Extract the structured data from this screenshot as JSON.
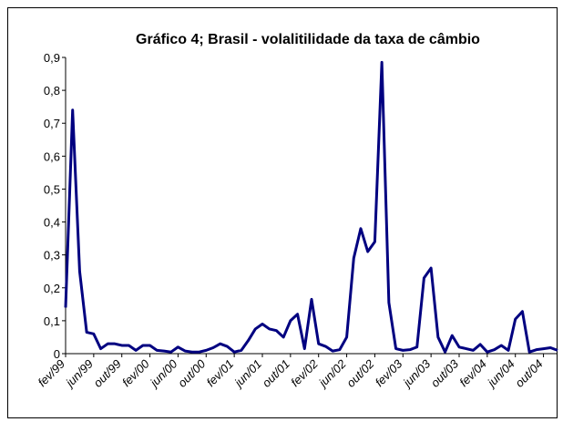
{
  "chart_data": {
    "type": "line",
    "title": "Gráfico 4; Brasil - volalitilidade da taxa de câmbio",
    "categories": [
      "fev/99",
      null,
      null,
      null,
      "jun/99",
      null,
      null,
      null,
      "out/99",
      null,
      null,
      null,
      "fev/00",
      null,
      null,
      null,
      "jun/00",
      null,
      null,
      null,
      "out/00",
      null,
      null,
      null,
      "fev/01",
      null,
      null,
      null,
      "jun/01",
      null,
      null,
      null,
      "out/01",
      null,
      null,
      null,
      "fev/02",
      null,
      null,
      null,
      "jun/02",
      null,
      null,
      null,
      "out/02",
      null,
      null,
      null,
      "fev/03",
      null,
      null,
      null,
      "jun/03",
      null,
      null,
      null,
      "out/03",
      null,
      null,
      null,
      "fev/04",
      null,
      null,
      null,
      "jun/04",
      null,
      null,
      null,
      "out/04",
      null,
      null
    ],
    "series": [
      {
        "color": "#000080",
        "values": [
          0.14,
          0.74,
          0.25,
          0.065,
          0.06,
          0.015,
          0.03,
          0.03,
          0.025,
          0.025,
          0.01,
          0.025,
          0.025,
          0.01,
          0.008,
          0.005,
          0.02,
          0.008,
          0.005,
          0.005,
          0.01,
          0.018,
          0.03,
          0.022,
          0.005,
          0.01,
          0.04,
          0.075,
          0.09,
          0.075,
          0.07,
          0.05,
          0.1,
          0.12,
          0.015,
          0.165,
          0.03,
          0.022,
          0.008,
          0.012,
          0.05,
          0.29,
          0.38,
          0.31,
          0.34,
          0.885,
          0.155,
          0.015,
          0.01,
          0.012,
          0.02,
          0.23,
          0.26,
          0.05,
          0.005,
          0.055,
          0.02,
          0.015,
          0.01,
          0.028,
          0.005,
          0.012,
          0.025,
          0.01,
          0.105,
          0.128,
          0.005,
          0.012,
          0.015,
          0.018,
          0.01
        ]
      }
    ],
    "ylim": [
      0,
      0.9
    ],
    "yticks": [
      0,
      {
        "value": 0.1,
        "label": "0,1"
      },
      {
        "value": 0.2,
        "label": "0,2"
      },
      {
        "value": 0.3,
        "label": "0,3"
      },
      {
        "value": 0.4,
        "label": "0,4"
      },
      {
        "value": 0.5,
        "label": "0,5"
      },
      {
        "value": 0.6,
        "label": "0,6"
      },
      {
        "value": 0.7,
        "label": "0,7"
      },
      {
        "value": 0.8,
        "label": "0,8"
      },
      {
        "value": 0.9,
        "label": "0,9"
      }
    ],
    "grid": false
  }
}
